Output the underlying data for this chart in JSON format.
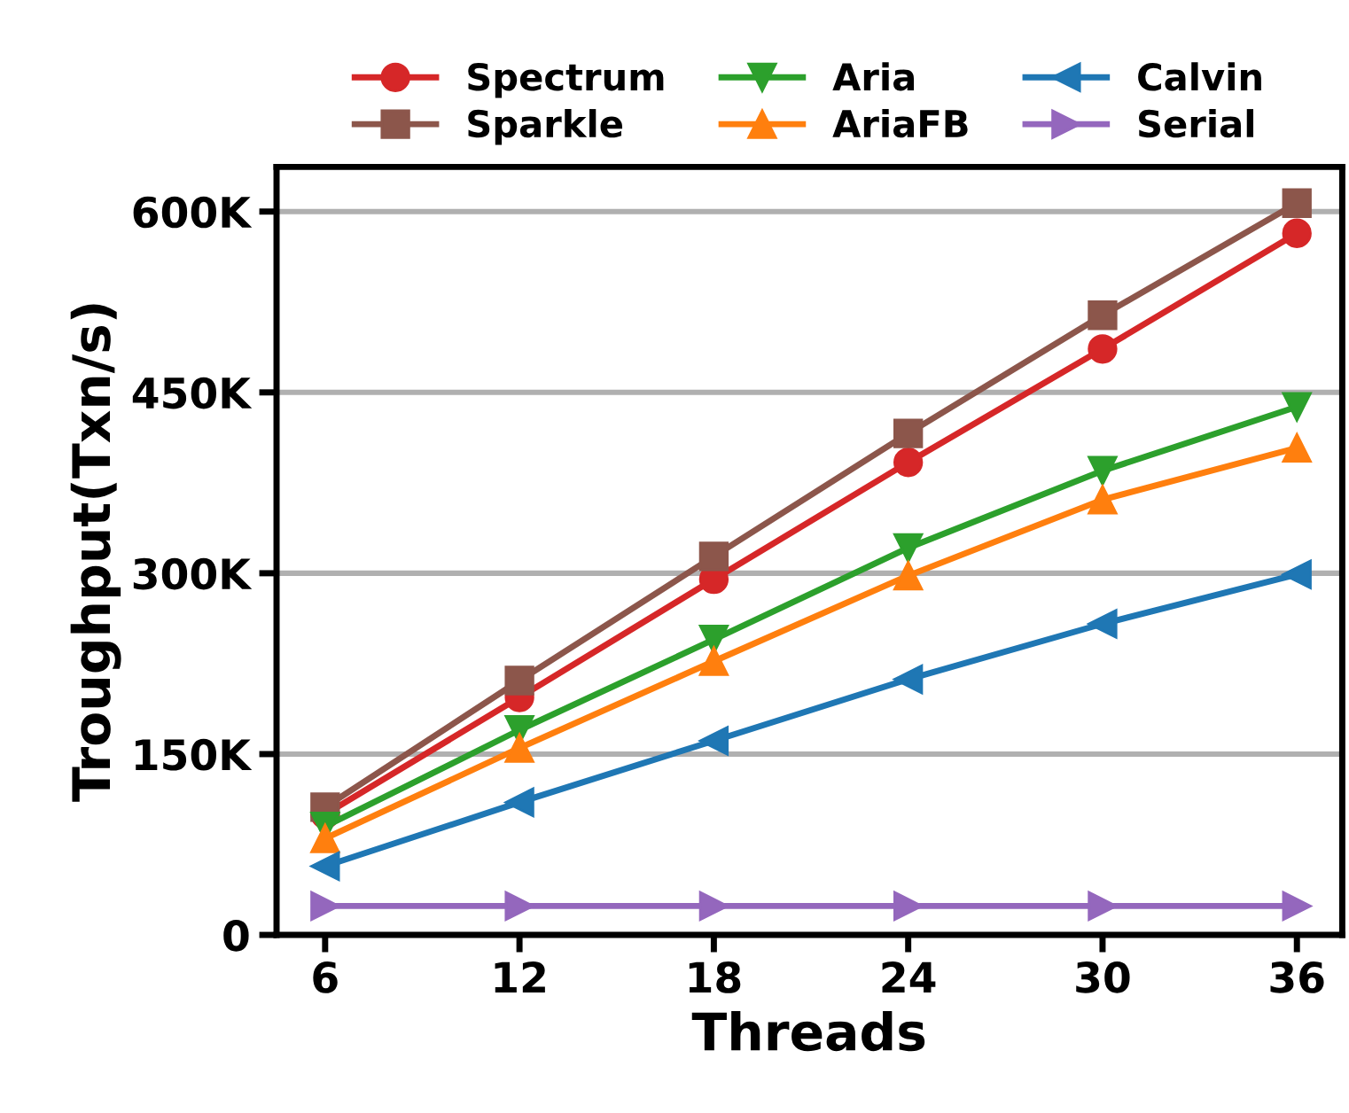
{
  "chart_data": {
    "type": "line",
    "xlabel": "Threads",
    "ylabel": "Troughput(Txn/s)",
    "x": [
      6,
      12,
      18,
      24,
      30,
      36
    ],
    "series": [
      {
        "name": "Spectrum",
        "color": "#d62728",
        "marker": "circle",
        "values": [
          100000,
          197000,
          295000,
          392000,
          486000,
          582000
        ]
      },
      {
        "name": "Sparkle",
        "color": "#8c564b",
        "marker": "square",
        "values": [
          106000,
          211000,
          314000,
          416000,
          514000,
          607000
        ]
      },
      {
        "name": "Aria",
        "color": "#2ca02c",
        "marker": "triangle_down",
        "values": [
          90000,
          170000,
          245000,
          321000,
          385000,
          438000
        ]
      },
      {
        "name": "AriaFB",
        "color": "#ff7f0e",
        "marker": "triangle",
        "values": [
          80000,
          155000,
          227000,
          298000,
          361000,
          404000
        ]
      },
      {
        "name": "Calvin",
        "color": "#1f77b4",
        "marker": "triangle_left",
        "values": [
          57000,
          110000,
          161000,
          212000,
          258000,
          299000
        ]
      },
      {
        "name": "Serial",
        "color": "#9467bd",
        "marker": "triangle_right",
        "values": [
          24000,
          24000,
          24000,
          24000,
          24000,
          24000
        ]
      }
    ],
    "xlim": [
      4.5,
      37.4
    ],
    "xticks": [
      6,
      12,
      18,
      24,
      30,
      36
    ],
    "ylim": [
      0,
      637000
    ],
    "yticks": [
      0,
      {
        "value": 150000,
        "label": "150K"
      },
      {
        "value": 300000,
        "label": "300K"
      },
      {
        "value": 450000,
        "label": "450K"
      },
      {
        "value": 600000,
        "label": "600K"
      }
    ],
    "grid": "y",
    "legend": "top",
    "line_style": "solid"
  }
}
